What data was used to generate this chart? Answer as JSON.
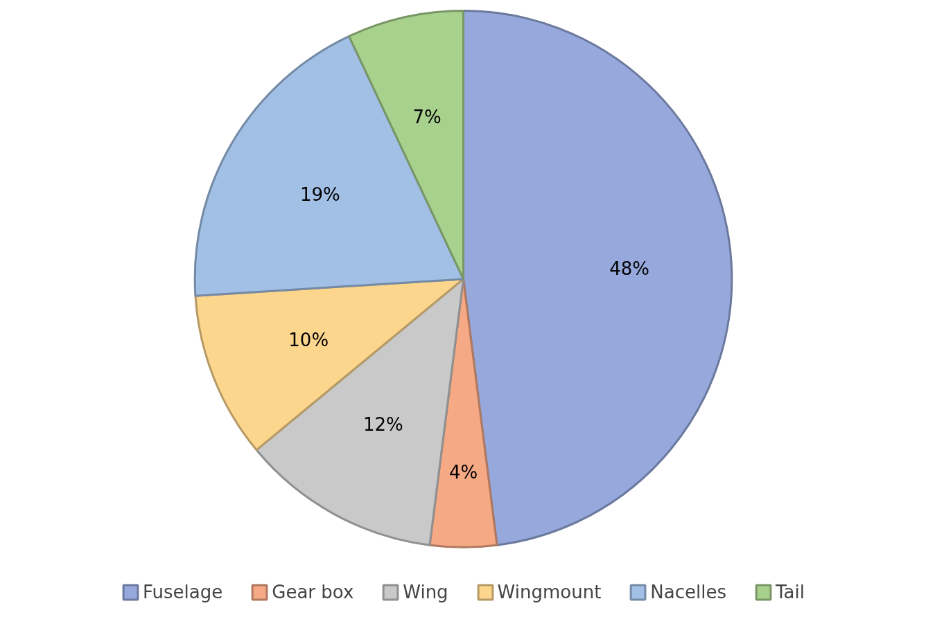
{
  "chart_data": {
    "type": "pie",
    "categories": [
      "Fuselage",
      "Gear box",
      "Wing",
      "Wingmount",
      "Nacelles",
      "Tail"
    ],
    "values": [
      48,
      4,
      12,
      10,
      19,
      7
    ],
    "colors": [
      "#97a9dc",
      "#f5a985",
      "#c9c9c9",
      "#fdd68e",
      "#a2c0e6",
      "#a9d18e"
    ],
    "value_labels": [
      "48%",
      "4%",
      "12%",
      "10%",
      "19%",
      "7%"
    ],
    "legend": "bottom"
  }
}
